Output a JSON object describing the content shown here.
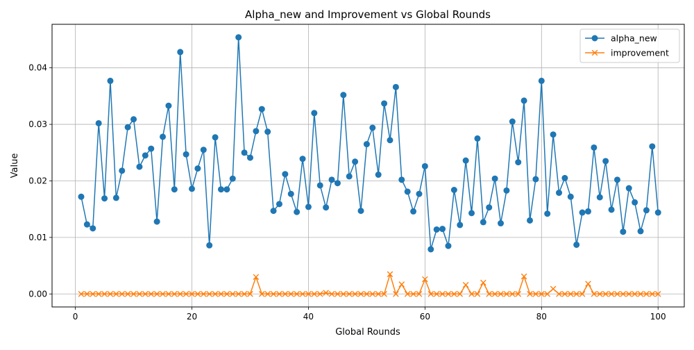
{
  "chart_data": {
    "type": "line",
    "title": "Alpha_new and Improvement vs Global Rounds",
    "xlabel": "Global Rounds",
    "ylabel": "Value",
    "xlim": [
      -4,
      104.5
    ],
    "ylim": [
      -0.0023,
      0.0477
    ],
    "xticks": [
      0,
      20,
      40,
      60,
      80,
      100
    ],
    "xtick_labels": [
      "0",
      "20",
      "40",
      "60",
      "80",
      "100"
    ],
    "yticks": [
      0.0,
      0.01,
      0.02,
      0.03,
      0.04
    ],
    "ytick_labels": [
      "0.00",
      "0.01",
      "0.02",
      "0.03",
      "0.04"
    ],
    "grid": true,
    "legend_position": "top-right",
    "x": [
      1,
      2,
      3,
      4,
      5,
      6,
      7,
      8,
      9,
      10,
      11,
      12,
      13,
      14,
      15,
      16,
      17,
      18,
      19,
      20,
      21,
      22,
      23,
      24,
      25,
      26,
      27,
      28,
      29,
      30,
      31,
      32,
      33,
      34,
      35,
      36,
      37,
      38,
      39,
      40,
      41,
      42,
      43,
      44,
      45,
      46,
      47,
      48,
      49,
      50,
      51,
      52,
      53,
      54,
      55,
      56,
      57,
      58,
      59,
      60,
      61,
      62,
      63,
      64,
      65,
      66,
      67,
      68,
      69,
      70,
      71,
      72,
      73,
      74,
      75,
      76,
      77,
      78,
      79,
      80,
      81,
      82,
      83,
      84,
      85,
      86,
      87,
      88,
      89,
      90,
      91,
      92,
      93,
      94,
      95,
      96,
      97,
      98,
      99,
      100
    ],
    "series": [
      {
        "name": "alpha_new",
        "color": "#1f77b4",
        "marker": "circle",
        "values": [
          0.0172,
          0.0123,
          0.0116,
          0.0302,
          0.0169,
          0.0377,
          0.017,
          0.0218,
          0.0295,
          0.0309,
          0.0225,
          0.0245,
          0.0257,
          0.0128,
          0.0278,
          0.0333,
          0.0185,
          0.0428,
          0.0247,
          0.0186,
          0.0222,
          0.0255,
          0.0086,
          0.0277,
          0.0185,
          0.0185,
          0.0204,
          0.0454,
          0.025,
          0.0241,
          0.0288,
          0.0327,
          0.0287,
          0.0147,
          0.0159,
          0.0212,
          0.0177,
          0.0145,
          0.0239,
          0.0154,
          0.032,
          0.0192,
          0.0153,
          0.0202,
          0.0196,
          0.0352,
          0.0208,
          0.0234,
          0.0147,
          0.0265,
          0.0294,
          0.0211,
          0.0337,
          0.0272,
          0.0366,
          0.0202,
          0.0181,
          0.0146,
          0.0177,
          0.0226,
          0.0079,
          0.0114,
          0.0115,
          0.0085,
          0.0184,
          0.0122,
          0.0236,
          0.0143,
          0.0275,
          0.0127,
          0.0153,
          0.0204,
          0.0125,
          0.0183,
          0.0305,
          0.0233,
          0.0342,
          0.013,
          0.0203,
          0.0377,
          0.0142,
          0.0282,
          0.0179,
          0.0205,
          0.0172,
          0.0087,
          0.0144,
          0.0146,
          0.0259,
          0.0171,
          0.0235,
          0.0149,
          0.0202,
          0.011,
          0.0187,
          0.0162,
          0.0111,
          0.0148,
          0.0261,
          0.0144
        ]
      },
      {
        "name": "improvement",
        "color": "#ff7f0e",
        "marker": "x",
        "values": [
          0,
          0,
          0,
          0,
          0,
          0,
          0,
          0,
          0,
          0,
          0,
          0,
          0,
          0,
          0,
          0,
          0,
          0,
          0,
          0,
          0,
          0,
          0,
          0,
          0,
          0,
          0,
          0,
          0,
          0,
          0.003,
          0,
          0,
          0,
          0,
          0,
          0,
          0,
          0,
          0,
          0,
          0,
          0.0002,
          0,
          0,
          0,
          0,
          0,
          0,
          0,
          0,
          0,
          0,
          0.0035,
          0,
          0.0017,
          0,
          0,
          0,
          0.0026,
          0,
          0,
          0,
          0,
          0,
          0,
          0.0016,
          0,
          0,
          0.002,
          0,
          0,
          0,
          0,
          0,
          0,
          0.0031,
          0,
          0,
          0,
          0,
          0.0009,
          0,
          0,
          0,
          0,
          0,
          0.0018,
          0,
          0,
          0,
          0,
          0,
          0,
          0,
          0,
          0,
          0,
          0,
          0
        ]
      }
    ]
  }
}
